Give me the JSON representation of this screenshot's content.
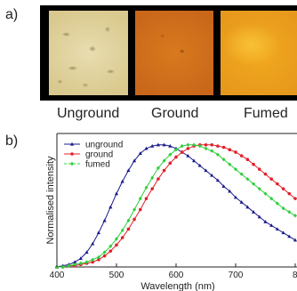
{
  "panels": {
    "a": "a)",
    "b": "b)"
  },
  "samples": [
    "Unground",
    "Ground",
    "Fumed"
  ],
  "colors": {
    "unground": "#1a1a8c",
    "ground": "#e0202a",
    "fumed": "#2ecf3c"
  },
  "chart_data": {
    "type": "line",
    "title": "",
    "xlabel": "Wavelength (nm)",
    "ylabel": "Normalised intensity",
    "xlim": [
      400,
      810
    ],
    "ylim": [
      0,
      1.02
    ],
    "x_ticks": [
      "400",
      "500",
      "600",
      "700",
      "8"
    ],
    "legend_position": "top-left",
    "series": [
      {
        "name": "unground",
        "marker": "triangle",
        "x": [
          400,
          410,
          420,
          430,
          440,
          450,
          460,
          470,
          480,
          490,
          500,
          510,
          520,
          530,
          540,
          550,
          560,
          570,
          580,
          590,
          600,
          610,
          620,
          630,
          640,
          650,
          660,
          670,
          680,
          690,
          700,
          710,
          720,
          730,
          740,
          750,
          760,
          770,
          780,
          790,
          800,
          810
        ],
        "values": [
          0.0,
          0.01,
          0.02,
          0.04,
          0.07,
          0.12,
          0.19,
          0.28,
          0.38,
          0.49,
          0.6,
          0.7,
          0.79,
          0.87,
          0.93,
          0.97,
          0.99,
          1.0,
          1.0,
          0.99,
          0.97,
          0.94,
          0.91,
          0.87,
          0.83,
          0.79,
          0.75,
          0.71,
          0.66,
          0.62,
          0.57,
          0.53,
          0.49,
          0.45,
          0.41,
          0.37,
          0.34,
          0.31,
          0.28,
          0.25,
          0.22,
          0.2
        ]
      },
      {
        "name": "ground",
        "marker": "circle",
        "x": [
          400,
          410,
          420,
          430,
          440,
          450,
          460,
          470,
          480,
          490,
          500,
          510,
          520,
          530,
          540,
          550,
          560,
          570,
          580,
          590,
          600,
          610,
          620,
          630,
          640,
          650,
          660,
          670,
          680,
          690,
          700,
          710,
          720,
          730,
          740,
          750,
          760,
          770,
          780,
          790,
          800,
          810
        ],
        "values": [
          0.0,
          0.0,
          0.01,
          0.01,
          0.02,
          0.03,
          0.04,
          0.06,
          0.09,
          0.13,
          0.18,
          0.24,
          0.31,
          0.39,
          0.47,
          0.56,
          0.64,
          0.72,
          0.79,
          0.85,
          0.9,
          0.94,
          0.97,
          0.99,
          1.0,
          1.0,
          1.0,
          0.99,
          0.98,
          0.96,
          0.94,
          0.91,
          0.88,
          0.84,
          0.8,
          0.76,
          0.72,
          0.68,
          0.64,
          0.6,
          0.56,
          0.52
        ]
      },
      {
        "name": "fumed",
        "marker": "diamond",
        "x": [
          400,
          410,
          420,
          430,
          440,
          450,
          460,
          470,
          480,
          490,
          500,
          510,
          520,
          530,
          540,
          550,
          560,
          570,
          580,
          590,
          600,
          610,
          620,
          630,
          640,
          650,
          660,
          670,
          680,
          690,
          700,
          710,
          720,
          730,
          740,
          750,
          760,
          770,
          780,
          790,
          800,
          810
        ],
        "values": [
          0.0,
          0.0,
          0.01,
          0.02,
          0.03,
          0.04,
          0.06,
          0.08,
          0.12,
          0.17,
          0.23,
          0.3,
          0.38,
          0.47,
          0.56,
          0.65,
          0.73,
          0.81,
          0.87,
          0.92,
          0.96,
          0.99,
          1.0,
          1.0,
          0.99,
          0.97,
          0.95,
          0.92,
          0.88,
          0.84,
          0.8,
          0.76,
          0.72,
          0.68,
          0.64,
          0.6,
          0.56,
          0.52,
          0.48,
          0.45,
          0.42,
          0.39
        ]
      }
    ]
  }
}
